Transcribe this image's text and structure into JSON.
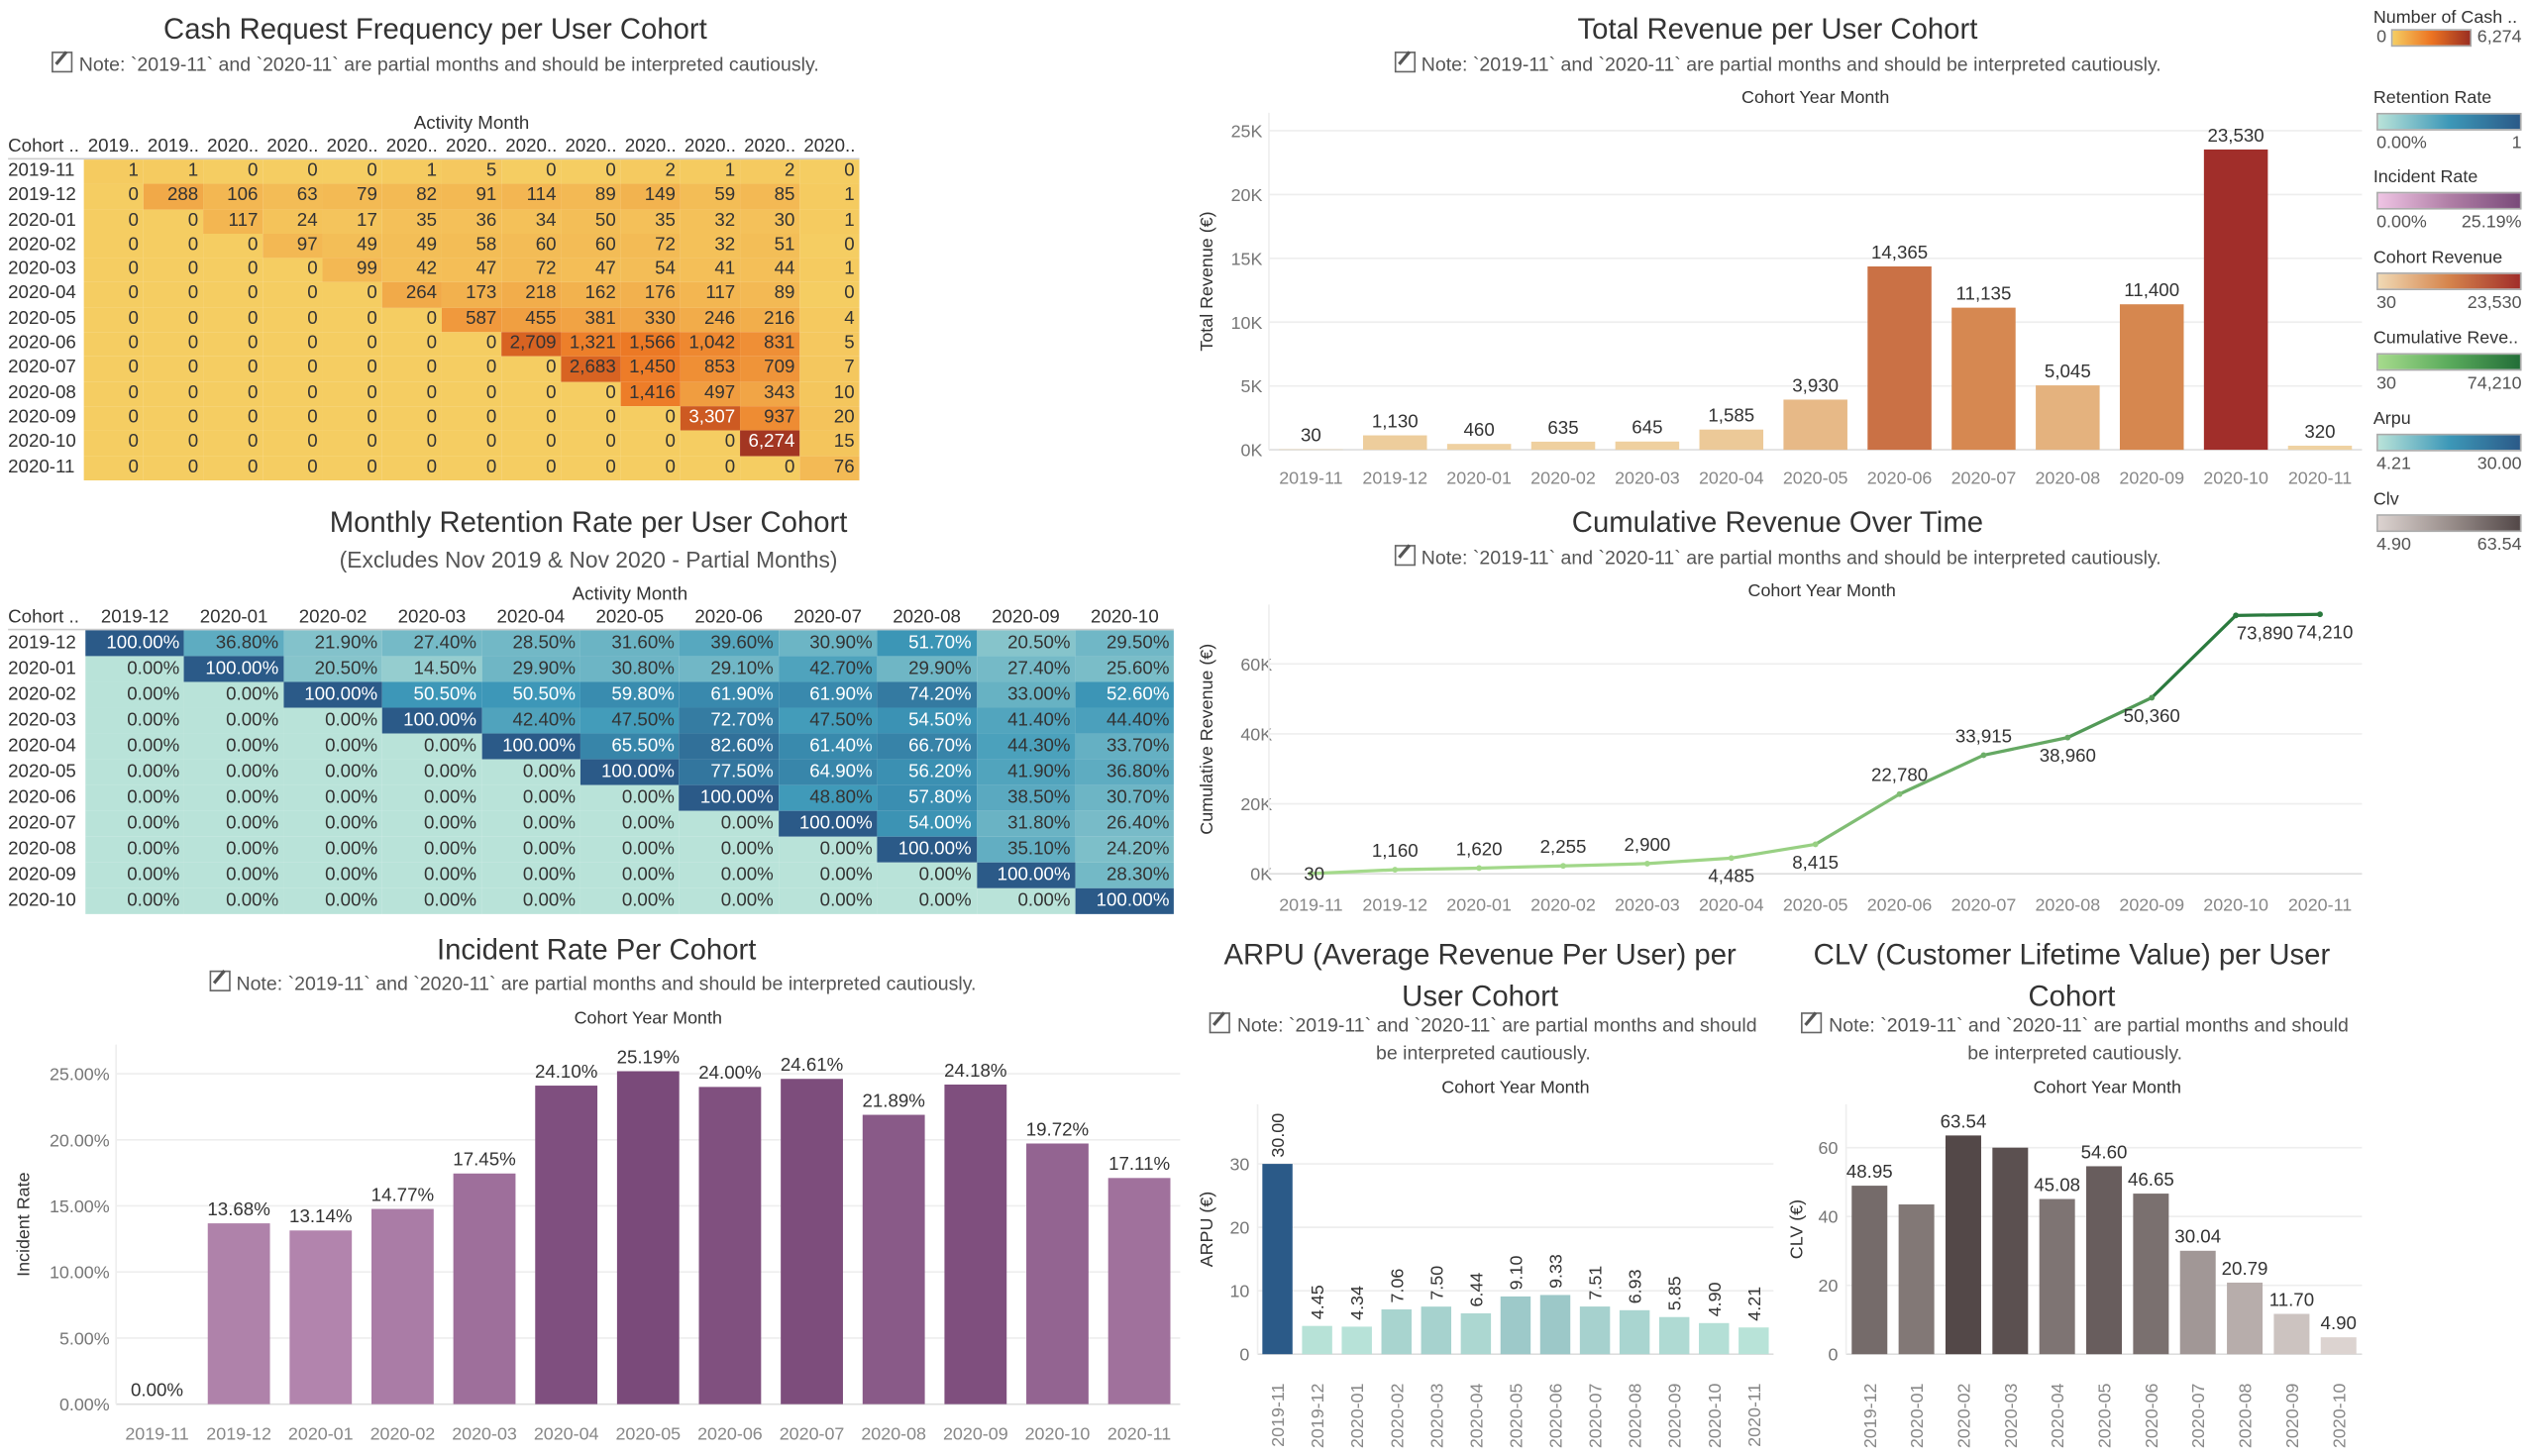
{
  "note": "Note: `2019-11` and `2020-11` are partial months and should be interpreted cautiously.",
  "cash_heatmap": {
    "title": "Cash Request Frequency per User Cohort",
    "note": "Note: `2019-11` and `2020-11` are partial months and should be interpreted cautiously.",
    "col_axis_title": "Activity Month",
    "row_header": "Cohort ..",
    "chart_data": {
      "type": "heatmap",
      "col_headers": [
        "2019..",
        "2019..",
        "2020..",
        "2020..",
        "2020..",
        "2020..",
        "2020..",
        "2020..",
        "2020..",
        "2020..",
        "2020..",
        "2020..",
        "2020.."
      ],
      "rows": [
        "2019-11",
        "2019-12",
        "2020-01",
        "2020-02",
        "2020-03",
        "2020-04",
        "2020-05",
        "2020-06",
        "2020-07",
        "2020-08",
        "2020-09",
        "2020-10",
        "2020-11"
      ],
      "values": [
        [
          1,
          1,
          0,
          0,
          0,
          1,
          5,
          0,
          0,
          2,
          1,
          2,
          0
        ],
        [
          0,
          288,
          106,
          63,
          79,
          82,
          91,
          114,
          89,
          149,
          59,
          85,
          1
        ],
        [
          0,
          0,
          117,
          24,
          17,
          35,
          36,
          34,
          50,
          35,
          32,
          30,
          1
        ],
        [
          0,
          0,
          0,
          97,
          49,
          49,
          58,
          60,
          60,
          72,
          32,
          51,
          0
        ],
        [
          0,
          0,
          0,
          0,
          99,
          42,
          47,
          72,
          47,
          54,
          41,
          44,
          1
        ],
        [
          0,
          0,
          0,
          0,
          0,
          264,
          173,
          218,
          162,
          176,
          117,
          89,
          0
        ],
        [
          0,
          0,
          0,
          0,
          0,
          0,
          587,
          455,
          381,
          330,
          246,
          216,
          4
        ],
        [
          0,
          0,
          0,
          0,
          0,
          0,
          0,
          2709,
          1321,
          1566,
          1042,
          831,
          5
        ],
        [
          0,
          0,
          0,
          0,
          0,
          0,
          0,
          0,
          2683,
          1450,
          853,
          709,
          7
        ],
        [
          0,
          0,
          0,
          0,
          0,
          0,
          0,
          0,
          0,
          1416,
          497,
          343,
          10
        ],
        [
          0,
          0,
          0,
          0,
          0,
          0,
          0,
          0,
          0,
          0,
          3307,
          937,
          20
        ],
        [
          0,
          0,
          0,
          0,
          0,
          0,
          0,
          0,
          0,
          0,
          0,
          6274,
          15
        ],
        [
          0,
          0,
          0,
          0,
          0,
          0,
          0,
          0,
          0,
          0,
          0,
          0,
          76
        ]
      ]
    }
  },
  "retention_heatmap": {
    "title": "Monthly Retention Rate per User Cohort",
    "subtitle": "(Excludes Nov 2019 & Nov 2020 - Partial Months)",
    "col_axis_title": "Activity Month",
    "row_header": "Cohort ..",
    "chart_data": {
      "type": "heatmap",
      "col_headers": [
        "2019-12",
        "2020-01",
        "2020-02",
        "2020-03",
        "2020-04",
        "2020-05",
        "2020-06",
        "2020-07",
        "2020-08",
        "2020-09",
        "2020-10"
      ],
      "rows": [
        "2019-12",
        "2020-01",
        "2020-02",
        "2020-03",
        "2020-04",
        "2020-05",
        "2020-06",
        "2020-07",
        "2020-08",
        "2020-09",
        "2020-10"
      ],
      "values": [
        [
          100,
          36.8,
          21.9,
          27.4,
          28.5,
          31.6,
          39.6,
          30.9,
          51.7,
          20.5,
          29.5
        ],
        [
          0,
          100,
          20.5,
          14.5,
          29.9,
          30.8,
          29.1,
          42.7,
          29.9,
          27.4,
          25.6
        ],
        [
          0,
          0,
          100,
          50.5,
          50.5,
          59.8,
          61.9,
          61.9,
          74.2,
          33.0,
          52.6
        ],
        [
          0,
          0,
          0,
          100,
          42.4,
          47.5,
          72.7,
          47.5,
          54.5,
          41.4,
          44.4
        ],
        [
          0,
          0,
          0,
          0,
          100,
          65.5,
          82.6,
          61.4,
          66.7,
          44.3,
          33.7
        ],
        [
          0,
          0,
          0,
          0,
          0,
          100,
          77.5,
          64.9,
          56.2,
          41.9,
          36.8
        ],
        [
          0,
          0,
          0,
          0,
          0,
          0,
          100,
          48.8,
          57.8,
          38.5,
          30.7
        ],
        [
          0,
          0,
          0,
          0,
          0,
          0,
          0,
          100,
          54.0,
          31.8,
          26.4
        ],
        [
          0,
          0,
          0,
          0,
          0,
          0,
          0,
          0,
          100,
          35.1,
          24.2
        ],
        [
          0,
          0,
          0,
          0,
          0,
          0,
          0,
          0,
          0,
          100,
          28.3
        ],
        [
          0,
          0,
          0,
          0,
          0,
          0,
          0,
          0,
          0,
          0,
          100
        ]
      ],
      "unit": "%"
    }
  },
  "chart_data": [
    {
      "id": "revenue",
      "type": "bar",
      "title": "Total Revenue per User Cohort",
      "xlabel": "Cohort Year Month",
      "ylabel": "Total Revenue (€)",
      "categories": [
        "2019-11",
        "2019-12",
        "2020-01",
        "2020-02",
        "2020-03",
        "2020-04",
        "2020-05",
        "2020-06",
        "2020-07",
        "2020-08",
        "2020-09",
        "2020-10",
        "2020-11"
      ],
      "values": [
        30,
        1130,
        460,
        635,
        645,
        1585,
        3930,
        14365,
        11135,
        5045,
        11400,
        23530,
        320
      ],
      "labels": [
        "30",
        "1,130",
        "460",
        "635",
        "645",
        "1,585",
        "3,930",
        "14,365",
        "11,135",
        "5,045",
        "11,400",
        "23,530",
        "320"
      ],
      "ylim": [
        0,
        26400
      ],
      "yticks": [
        0,
        5000,
        10000,
        15000,
        20000,
        25000
      ],
      "ytick_labels": [
        "0K",
        "5K",
        "10K",
        "15K",
        "20K",
        "25K"
      ],
      "color_range": [
        "#f0d4a4",
        "#d5844c",
        "#a12e2a"
      ],
      "grid": true
    },
    {
      "id": "cumulative",
      "type": "line",
      "title": "Cumulative Revenue Over Time",
      "xlabel": "Cohort Year Month",
      "ylabel": "Cumulative Revenue (€)",
      "categories": [
        "2019-11",
        "2019-12",
        "2020-01",
        "2020-02",
        "2020-03",
        "2020-04",
        "2020-05",
        "2020-06",
        "2020-07",
        "2020-08",
        "2020-09",
        "2020-10",
        "2020-11"
      ],
      "values": [
        30,
        1160,
        1620,
        2255,
        2900,
        4485,
        8415,
        22780,
        33915,
        38960,
        50360,
        73890,
        74210
      ],
      "labels": [
        "30",
        "1,160",
        "1,620",
        "2,255",
        "2,900",
        "4,485",
        "8,415",
        "22,780",
        "33,915",
        "38,960",
        "50,360",
        "73,890",
        "74,210"
      ],
      "ylim": [
        0,
        77000
      ],
      "yticks": [
        0,
        20000,
        40000,
        60000
      ],
      "ytick_labels": [
        "0K",
        "20K",
        "40K",
        "60K"
      ],
      "color_range": [
        "#a6db8c",
        "#2a7a3e"
      ],
      "grid": true
    },
    {
      "id": "incident",
      "type": "bar",
      "title": "Incident Rate Per Cohort",
      "xlabel": "Cohort Year Month",
      "ylabel": "Incident Rate",
      "categories": [
        "2019-11",
        "2019-12",
        "2020-01",
        "2020-02",
        "2020-03",
        "2020-04",
        "2020-05",
        "2020-06",
        "2020-07",
        "2020-08",
        "2020-09",
        "2020-10",
        "2020-11"
      ],
      "values": [
        0,
        13.68,
        13.14,
        14.77,
        17.45,
        24.1,
        25.19,
        24.0,
        24.61,
        21.89,
        24.18,
        19.72,
        17.11
      ],
      "labels": [
        "0.00%",
        "13.68%",
        "13.14%",
        "14.77%",
        "17.45%",
        "24.10%",
        "25.19%",
        "24.00%",
        "24.61%",
        "21.89%",
        "24.18%",
        "19.72%",
        "17.11%"
      ],
      "ylim": [
        0,
        27.2
      ],
      "yticks": [
        0,
        5,
        10,
        15,
        20,
        25
      ],
      "ytick_labels": [
        "0.00%",
        "5.00%",
        "10.00%",
        "15.00%",
        "20.00%",
        "25.00%"
      ],
      "color_range": [
        "#efc4e4",
        "#7a4a7a"
      ],
      "grid": true
    },
    {
      "id": "arpu",
      "type": "bar",
      "title": "ARPU (Average Revenue Per User) per User Cohort",
      "xlabel": "Cohort Year Month",
      "ylabel": "ARPU (€)",
      "categories": [
        "2019-11",
        "2019-12",
        "2020-01",
        "2020-02",
        "2020-03",
        "2020-04",
        "2020-05",
        "2020-06",
        "2020-07",
        "2020-08",
        "2020-09",
        "2020-10",
        "2020-11"
      ],
      "values": [
        30.0,
        4.45,
        4.34,
        7.06,
        7.5,
        6.44,
        9.1,
        9.33,
        7.51,
        6.93,
        5.85,
        4.9,
        4.21
      ],
      "labels": [
        "30.00",
        "4.45",
        "4.34",
        "7.06",
        "7.50",
        "6.44",
        "9.10",
        "9.33",
        "7.51",
        "6.93",
        "5.85",
        "4.90",
        "4.21"
      ],
      "ylim": [
        0,
        39.4
      ],
      "yticks": [
        0,
        10,
        20,
        30
      ],
      "ytick_labels": [
        "0",
        "10",
        "20",
        "30"
      ],
      "color_range": [
        "#b8e3d8",
        "#2b5a88"
      ],
      "grid": true
    },
    {
      "id": "clv",
      "type": "bar",
      "title": "CLV (Customer Lifetime Value) per User Cohort",
      "xlabel": "Cohort Year Month",
      "ylabel": "CLV (€)",
      "categories": [
        "2019-12",
        "2020-01",
        "2020-02",
        "2020-03",
        "2020-04",
        "2020-05",
        "2020-06",
        "2020-07",
        "2020-08",
        "2020-09",
        "2020-10"
      ],
      "values": [
        48.95,
        43.5,
        63.54,
        60.0,
        45.08,
        54.6,
        46.65,
        30.04,
        20.79,
        11.7,
        4.9
      ],
      "labels": [
        "48.95",
        "",
        "63.54",
        "",
        "45.08",
        "54.60",
        "46.65",
        "30.04",
        "20.79",
        "11.70",
        "4.90"
      ],
      "ylim": [
        0,
        72.6
      ],
      "yticks": [
        0,
        20,
        40,
        60
      ],
      "ytick_labels": [
        "0",
        "20",
        "40",
        "60"
      ],
      "color_range": [
        "#dcd3d0",
        "#534848"
      ],
      "grid": true
    }
  ],
  "legends": [
    {
      "title": "Number of Cash ..",
      "min": "0",
      "max": "6,274",
      "colors": [
        "#f5cd62",
        "#ec7422",
        "#9b2f22"
      ]
    },
    {
      "title": "Retention Rate",
      "min": "0.00%",
      "max": "1",
      "colors": [
        "#b9e3d9",
        "#3d98b8",
        "#2b5a88"
      ]
    },
    {
      "title": "Incident Rate",
      "min": "0.00%",
      "max": "25.19%",
      "colors": [
        "#efc4e4",
        "#b07fa6",
        "#7a4a7a"
      ]
    },
    {
      "title": "Cohort Revenue",
      "min": "30",
      "max": "23,530",
      "colors": [
        "#f0d9b4",
        "#d5844c",
        "#a12e2a"
      ]
    },
    {
      "title": "Cumulative Reve..",
      "min": "30",
      "max": "74,210",
      "colors": [
        "#a6db8c",
        "#5aab5c",
        "#236e38"
      ]
    },
    {
      "title": "Arpu",
      "min": "4.21",
      "max": "30.00",
      "colors": [
        "#b9e3d9",
        "#3d98b8",
        "#2b5a88"
      ]
    },
    {
      "title": "Clv",
      "min": "4.90",
      "max": "63.54",
      "colors": [
        "#dcd3d0",
        "#9a8f8c",
        "#534848"
      ]
    }
  ]
}
